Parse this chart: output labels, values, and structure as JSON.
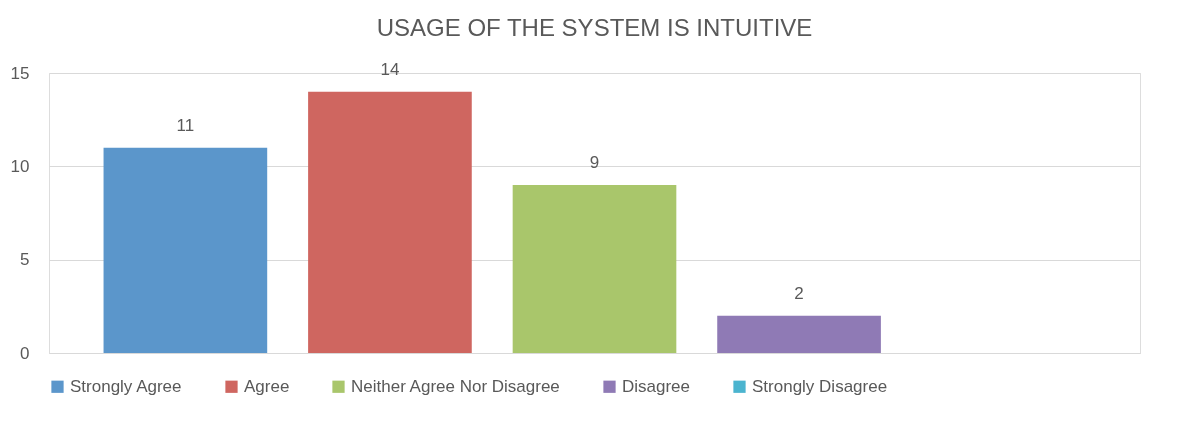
{
  "chart_data": {
    "type": "bar",
    "title": "USAGE OF THE SYSTEM IS INTUITIVE",
    "categories": [
      null
    ],
    "series": [
      {
        "name": "Strongly Agree",
        "color": "#5b96cb",
        "values": [
          11
        ],
        "value_labels": [
          "11"
        ]
      },
      {
        "name": "Agree",
        "color": "#cf6660",
        "values": [
          14
        ],
        "value_labels": [
          "14"
        ]
      },
      {
        "name": "Neither Agree Nor Disagree",
        "color": "#a9c66b",
        "values": [
          9
        ],
        "value_labels": [
          "9"
        ]
      },
      {
        "name": "Disagree",
        "color": "#8f7ab5",
        "values": [
          2
        ],
        "value_labels": [
          "2"
        ]
      },
      {
        "name": "Strongly Disagree",
        "color": "#4bb4cf",
        "values": [
          0
        ],
        "value_labels": [
          null
        ]
      }
    ],
    "ylim": [
      0,
      15
    ],
    "yticks": [
      0,
      5,
      10,
      15
    ],
    "grid": "y",
    "legend": "bottom",
    "tick_labels": "y"
  }
}
